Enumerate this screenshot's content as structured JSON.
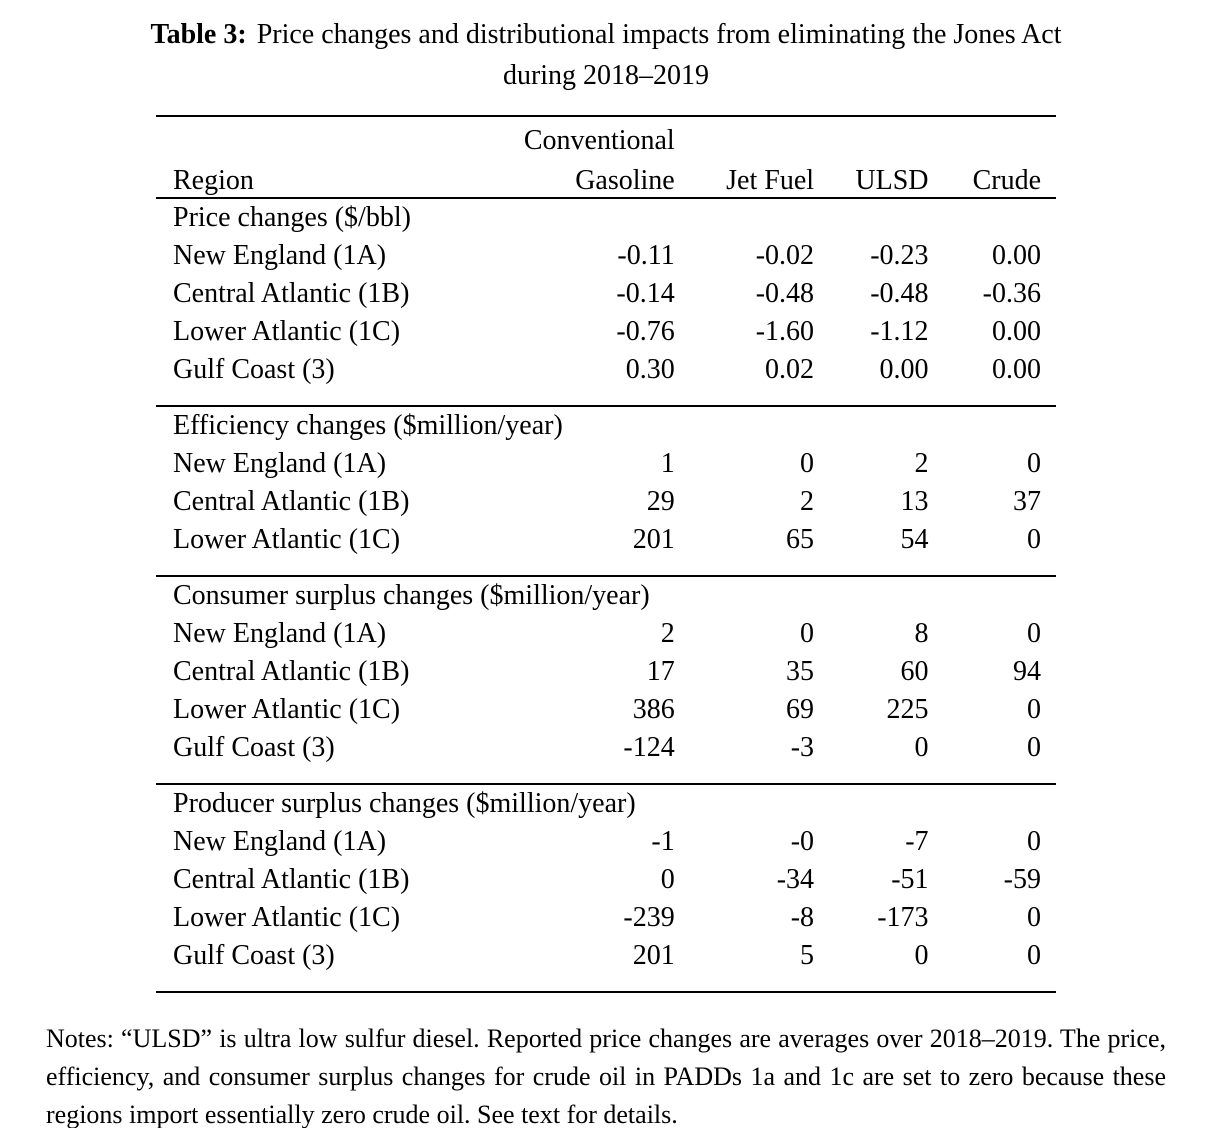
{
  "caption": {
    "label": "Table 3:",
    "line1": "Price changes and distributional impacts from eliminating the Jones Act",
    "line2": "during 2018–2019"
  },
  "table": {
    "header": {
      "region": "Region",
      "gasoline_line1": "Conventional",
      "gasoline_line2": "Gasoline",
      "jet_fuel": "Jet Fuel",
      "ulsd": "ULSD",
      "crude": "Crude"
    },
    "sections": [
      {
        "title": "Price changes ($/bbl)",
        "rows": [
          {
            "region": "New England (1A)",
            "values": [
              "-0.11",
              "-0.02",
              "-0.23",
              "0.00"
            ]
          },
          {
            "region": "Central Atlantic (1B)",
            "values": [
              "-0.14",
              "-0.48",
              "-0.48",
              "-0.36"
            ]
          },
          {
            "region": "Lower Atlantic (1C)",
            "values": [
              "-0.76",
              "-1.60",
              "-1.12",
              "0.00"
            ]
          },
          {
            "region": "Gulf Coast (3)",
            "values": [
              "0.30",
              "0.02",
              "0.00",
              "0.00"
            ]
          }
        ]
      },
      {
        "title": "Efficiency changes ($million/year)",
        "rows": [
          {
            "region": "New England (1A)",
            "values": [
              "1",
              "0",
              "2",
              "0"
            ]
          },
          {
            "region": "Central Atlantic (1B)",
            "values": [
              "29",
              "2",
              "13",
              "37"
            ]
          },
          {
            "region": "Lower Atlantic (1C)",
            "values": [
              "201",
              "65",
              "54",
              "0"
            ]
          }
        ]
      },
      {
        "title": "Consumer surplus changes ($million/year)",
        "rows": [
          {
            "region": "New England (1A)",
            "values": [
              "2",
              "0",
              "8",
              "0"
            ]
          },
          {
            "region": "Central Atlantic (1B)",
            "values": [
              "17",
              "35",
              "60",
              "94"
            ]
          },
          {
            "region": "Lower Atlantic (1C)",
            "values": [
              "386",
              "69",
              "225",
              "0"
            ]
          },
          {
            "region": "Gulf Coast (3)",
            "values": [
              "-124",
              "-3",
              "0",
              "0"
            ]
          }
        ]
      },
      {
        "title": "Producer surplus changes ($million/year)",
        "rows": [
          {
            "region": "New England (1A)",
            "values": [
              "-1",
              "-0",
              "-7",
              "0"
            ]
          },
          {
            "region": "Central Atlantic (1B)",
            "values": [
              "0",
              "-34",
              "-51",
              "-59"
            ]
          },
          {
            "region": "Lower Atlantic (1C)",
            "values": [
              "-239",
              "-8",
              "-173",
              "0"
            ]
          },
          {
            "region": "Gulf Coast (3)",
            "values": [
              "201",
              "5",
              "0",
              "0"
            ]
          }
        ]
      }
    ]
  },
  "notes": "Notes: “ULSD” is ultra low sulfur diesel. Reported price changes are averages over 2018–2019. The price, efficiency, and consumer surplus changes for crude oil in PADDs 1a and 1c are set to zero because these regions import essentially zero crude oil. See text for details."
}
